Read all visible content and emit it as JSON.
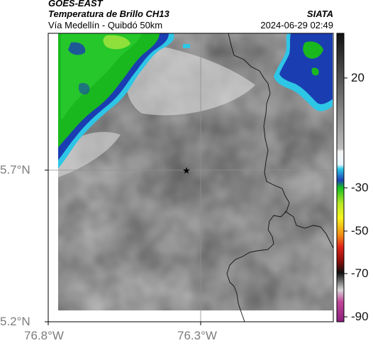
{
  "header": {
    "source": "GOES-EAST",
    "product": "Temperatura de Brillo CH13",
    "area": "Vía Medellín - Quibdó 50km",
    "organization": "SIATA",
    "timestamp": "2024-06-29 02:49"
  },
  "axes": {
    "latitude_labels": [
      "5.7°N",
      "5.2°N"
    ],
    "longitude_labels": [
      "76.8°W",
      "76.3°W"
    ]
  },
  "colorbar": {
    "tick_labels": [
      "20",
      "-30",
      "-50",
      "-70",
      "-90"
    ]
  },
  "colors": {
    "cloud_green": "#17b81b",
    "cloud_blue": "#1a3fb0",
    "cloud_cyan": "#22c8e8",
    "background_gray": "#a9a9a9"
  },
  "marker": {
    "icon": "star-icon"
  }
}
